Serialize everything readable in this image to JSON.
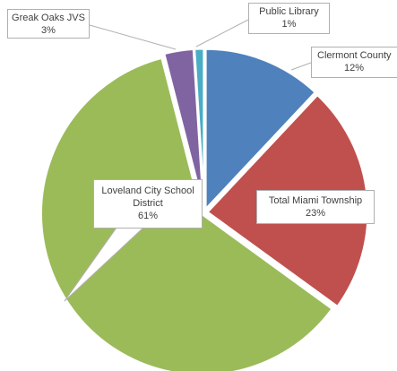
{
  "chart_data": {
    "type": "pie",
    "categories": [
      "Clermont County",
      "Total Miami Township",
      "Loveland City School District",
      "Greak Oaks JVS",
      "Public Library"
    ],
    "values": [
      12,
      23,
      61,
      3,
      1
    ],
    "value_labels": [
      "12%",
      "23%",
      "61%",
      "3%",
      "1%"
    ],
    "colors": [
      "#4f81bd",
      "#c0504d",
      "#9bbb59",
      "#8064a2",
      "#4bacc6"
    ]
  }
}
